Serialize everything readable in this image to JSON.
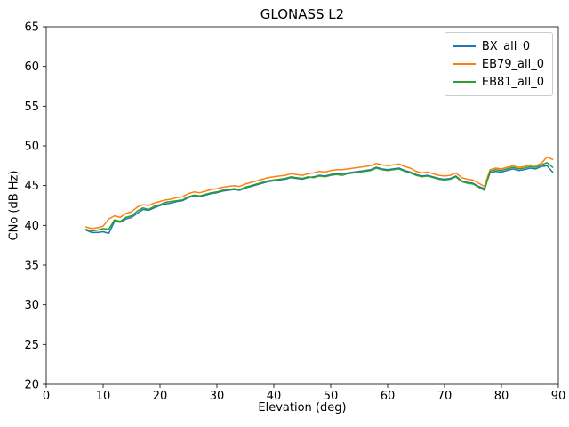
{
  "chart_data": {
    "type": "line",
    "title": "GLONASS L2",
    "xlabel": "Elevation (deg)",
    "ylabel": "CNo (dB Hz)",
    "xlim": [
      0,
      90
    ],
    "ylim": [
      20,
      65
    ],
    "xticks": [
      0,
      10,
      20,
      30,
      40,
      50,
      60,
      70,
      80,
      90
    ],
    "yticks": [
      20,
      25,
      30,
      35,
      40,
      45,
      50,
      55,
      60,
      65
    ],
    "grid": false,
    "legend_position": "upper right",
    "x": [
      7,
      8,
      9,
      10,
      11,
      12,
      13,
      14,
      15,
      16,
      17,
      18,
      19,
      20,
      21,
      22,
      23,
      24,
      25,
      26,
      27,
      28,
      29,
      30,
      31,
      32,
      33,
      34,
      35,
      36,
      37,
      38,
      39,
      40,
      41,
      42,
      43,
      44,
      45,
      46,
      47,
      48,
      49,
      50,
      51,
      52,
      53,
      54,
      55,
      56,
      57,
      58,
      59,
      60,
      61,
      62,
      63,
      64,
      65,
      66,
      67,
      68,
      69,
      70,
      71,
      72,
      73,
      74,
      75,
      76,
      77,
      78,
      79,
      80,
      81,
      82,
      83,
      84,
      85,
      86,
      87,
      88,
      89
    ],
    "series": [
      {
        "name": "BX_all_0",
        "color": "#1f77b4",
        "values": [
          39.4,
          39.1,
          39.1,
          39.2,
          39.0,
          40.5,
          40.4,
          40.8,
          41.0,
          41.5,
          42.0,
          41.9,
          42.2,
          42.5,
          42.7,
          42.8,
          43.0,
          43.1,
          43.5,
          43.7,
          43.6,
          43.8,
          44.0,
          44.1,
          44.3,
          44.4,
          44.5,
          44.4,
          44.7,
          44.9,
          45.1,
          45.3,
          45.5,
          45.6,
          45.7,
          45.8,
          46.0,
          45.9,
          45.8,
          46.0,
          46.1,
          46.3,
          46.2,
          46.4,
          46.5,
          46.5,
          46.6,
          46.7,
          46.8,
          46.9,
          47.0,
          47.3,
          47.1,
          47.0,
          47.1,
          47.2,
          46.9,
          46.7,
          46.4,
          46.2,
          46.3,
          46.1,
          45.9,
          45.8,
          45.9,
          46.2,
          45.6,
          45.4,
          45.3,
          44.9,
          44.6,
          46.6,
          46.8,
          46.7,
          46.9,
          47.1,
          46.9,
          47.0,
          47.2,
          47.1,
          47.4,
          47.5,
          46.7
        ]
      },
      {
        "name": "EB79_all_0",
        "color": "#ff7f0e",
        "values": [
          39.8,
          39.6,
          39.7,
          39.9,
          40.8,
          41.2,
          41.0,
          41.5,
          41.7,
          42.3,
          42.6,
          42.5,
          42.8,
          43.0,
          43.2,
          43.3,
          43.5,
          43.6,
          44.0,
          44.2,
          44.1,
          44.3,
          44.5,
          44.6,
          44.8,
          44.9,
          45.0,
          44.9,
          45.2,
          45.4,
          45.6,
          45.8,
          46.0,
          46.1,
          46.2,
          46.3,
          46.5,
          46.4,
          46.3,
          46.5,
          46.6,
          46.8,
          46.7,
          46.9,
          47.0,
          47.0,
          47.1,
          47.2,
          47.3,
          47.4,
          47.5,
          47.8,
          47.6,
          47.5,
          47.6,
          47.7,
          47.4,
          47.2,
          46.8,
          46.6,
          46.7,
          46.5,
          46.3,
          46.2,
          46.3,
          46.6,
          46.0,
          45.8,
          45.7,
          45.3,
          44.9,
          47.0,
          47.2,
          47.1,
          47.3,
          47.5,
          47.3,
          47.4,
          47.6,
          47.5,
          47.8,
          48.6,
          48.3
        ]
      },
      {
        "name": "EB81_all_0",
        "color": "#2ca02c",
        "values": [
          39.5,
          39.3,
          39.4,
          39.6,
          39.5,
          40.7,
          40.5,
          41.0,
          41.2,
          41.8,
          42.2,
          42.0,
          42.4,
          42.6,
          42.9,
          43.0,
          43.1,
          43.2,
          43.6,
          43.8,
          43.7,
          43.9,
          44.1,
          44.2,
          44.4,
          44.5,
          44.6,
          44.5,
          44.8,
          45.0,
          45.2,
          45.4,
          45.6,
          45.7,
          45.8,
          45.9,
          46.1,
          46.0,
          45.9,
          46.1,
          46.0,
          46.2,
          46.1,
          46.3,
          46.4,
          46.3,
          46.5,
          46.6,
          46.7,
          46.8,
          46.9,
          47.2,
          47.0,
          46.9,
          47.0,
          47.1,
          46.8,
          46.6,
          46.3,
          46.1,
          46.2,
          46.0,
          45.8,
          45.7,
          45.8,
          46.1,
          45.5,
          45.3,
          45.2,
          44.8,
          44.4,
          46.8,
          47.0,
          46.9,
          47.1,
          47.3,
          47.1,
          47.2,
          47.4,
          47.3,
          47.6,
          47.9,
          47.3
        ]
      }
    ]
  }
}
